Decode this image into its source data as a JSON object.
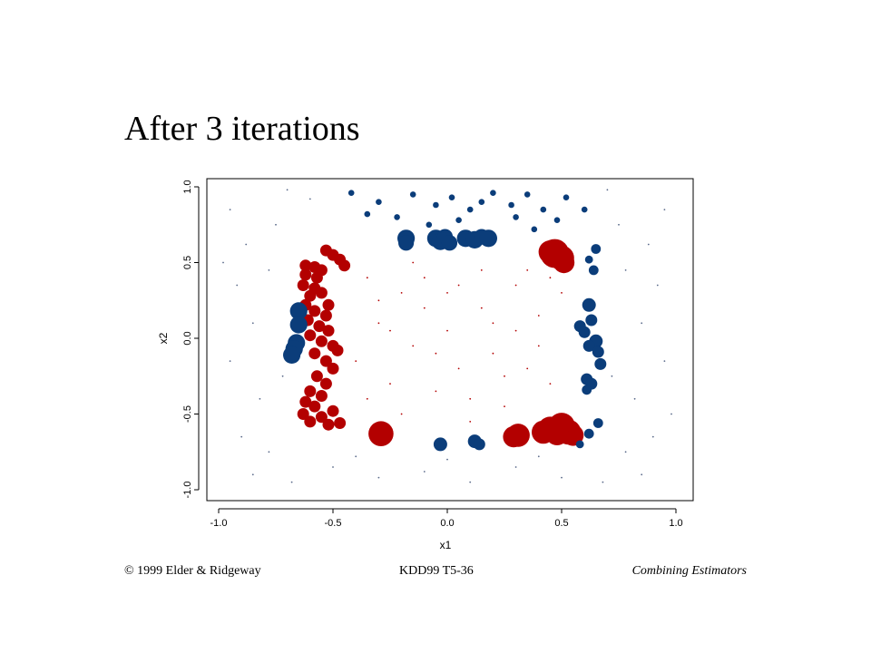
{
  "slide": {
    "title": "After 3 iterations"
  },
  "footer": {
    "left": "© 1999 Elder & Ridgeway",
    "center": "KDD99 T5-36",
    "right": "Combining Estimators"
  },
  "chart_data": {
    "type": "scatter",
    "xlabel": "x1",
    "ylabel": "x2",
    "xlim": [
      -1.0,
      1.0
    ],
    "ylim": [
      -1.0,
      1.0
    ],
    "xticks": [
      "-1.0",
      "-0.5",
      "0.0",
      "0.5",
      "1.0"
    ],
    "yticks": [
      "-1.0",
      "-0.5",
      "0.0",
      "0.5",
      "1.0"
    ],
    "grid": false,
    "series": [
      {
        "color": "#b30000",
        "points": [
          {
            "x": 0.47,
            "y": 0.56,
            "w": 14
          },
          {
            "x": 0.5,
            "y": 0.53,
            "w": 12
          },
          {
            "x": 0.45,
            "y": 0.57,
            "w": 11
          },
          {
            "x": 0.51,
            "y": 0.5,
            "w": 10
          },
          {
            "x": -0.29,
            "y": -0.63,
            "w": 12
          },
          {
            "x": 0.31,
            "y": -0.64,
            "w": 11
          },
          {
            "x": 0.29,
            "y": -0.65,
            "w": 10
          },
          {
            "x": 0.42,
            "y": -0.62,
            "w": 11
          },
          {
            "x": 0.45,
            "y": -0.6,
            "w": 12
          },
          {
            "x": 0.5,
            "y": -0.58,
            "w": 13
          },
          {
            "x": 0.53,
            "y": -0.62,
            "w": 12
          },
          {
            "x": 0.55,
            "y": -0.64,
            "w": 10
          },
          {
            "x": 0.48,
            "y": -0.63,
            "w": 11
          },
          {
            "x": -0.62,
            "y": 0.48,
            "w": 5
          },
          {
            "x": -0.58,
            "y": 0.47,
            "w": 5
          },
          {
            "x": -0.55,
            "y": 0.45,
            "w": 5
          },
          {
            "x": -0.62,
            "y": 0.42,
            "w": 5
          },
          {
            "x": -0.57,
            "y": 0.4,
            "w": 5
          },
          {
            "x": -0.63,
            "y": 0.35,
            "w": 5
          },
          {
            "x": -0.58,
            "y": 0.33,
            "w": 5
          },
          {
            "x": -0.55,
            "y": 0.3,
            "w": 5
          },
          {
            "x": -0.6,
            "y": 0.28,
            "w": 5
          },
          {
            "x": -0.62,
            "y": 0.22,
            "w": 5
          },
          {
            "x": -0.58,
            "y": 0.18,
            "w": 5
          },
          {
            "x": -0.53,
            "y": 0.15,
            "w": 5
          },
          {
            "x": -0.61,
            "y": 0.12,
            "w": 5
          },
          {
            "x": -0.56,
            "y": 0.08,
            "w": 5
          },
          {
            "x": -0.52,
            "y": 0.05,
            "w": 5
          },
          {
            "x": -0.6,
            "y": 0.02,
            "w": 5
          },
          {
            "x": -0.55,
            "y": -0.02,
            "w": 5
          },
          {
            "x": -0.5,
            "y": -0.05,
            "w": 5
          },
          {
            "x": -0.58,
            "y": -0.1,
            "w": 5
          },
          {
            "x": -0.53,
            "y": -0.15,
            "w": 5
          },
          {
            "x": -0.5,
            "y": -0.2,
            "w": 5
          },
          {
            "x": -0.57,
            "y": -0.25,
            "w": 5
          },
          {
            "x": -0.53,
            "y": -0.3,
            "w": 5
          },
          {
            "x": -0.6,
            "y": -0.35,
            "w": 5
          },
          {
            "x": -0.55,
            "y": -0.38,
            "w": 5
          },
          {
            "x": -0.62,
            "y": -0.42,
            "w": 5
          },
          {
            "x": -0.58,
            "y": -0.45,
            "w": 5
          },
          {
            "x": -0.55,
            "y": -0.52,
            "w": 5
          },
          {
            "x": -0.6,
            "y": -0.55,
            "w": 5
          },
          {
            "x": -0.52,
            "y": -0.57,
            "w": 5
          },
          {
            "x": -0.47,
            "y": -0.56,
            "w": 5
          },
          {
            "x": -0.5,
            "y": 0.55,
            "w": 5
          },
          {
            "x": -0.47,
            "y": 0.52,
            "w": 5
          },
          {
            "x": -0.53,
            "y": 0.58,
            "w": 5
          },
          {
            "x": -0.45,
            "y": 0.48,
            "w": 5
          },
          {
            "x": -0.52,
            "y": 0.22,
            "w": 5
          },
          {
            "x": -0.48,
            "y": -0.08,
            "w": 5
          },
          {
            "x": -0.5,
            "y": -0.48,
            "w": 5
          },
          {
            "x": -0.63,
            "y": -0.5,
            "w": 5
          },
          {
            "x": -0.2,
            "y": 0.3,
            "w": 1
          },
          {
            "x": -0.1,
            "y": 0.4,
            "w": 1
          },
          {
            "x": 0.05,
            "y": 0.35,
            "w": 1
          },
          {
            "x": 0.15,
            "y": 0.2,
            "w": 1
          },
          {
            "x": 0.3,
            "y": 0.35,
            "w": 1
          },
          {
            "x": 0.4,
            "y": 0.15,
            "w": 1
          },
          {
            "x": -0.3,
            "y": 0.1,
            "w": 1
          },
          {
            "x": -0.15,
            "y": -0.05,
            "w": 1
          },
          {
            "x": 0.0,
            "y": 0.05,
            "w": 1
          },
          {
            "x": 0.2,
            "y": -0.1,
            "w": 1
          },
          {
            "x": 0.35,
            "y": -0.2,
            "w": 1
          },
          {
            "x": -0.25,
            "y": -0.3,
            "w": 1
          },
          {
            "x": -0.05,
            "y": -0.35,
            "w": 1
          },
          {
            "x": 0.1,
            "y": -0.4,
            "w": 1
          },
          {
            "x": 0.25,
            "y": -0.45,
            "w": 1
          },
          {
            "x": 0.45,
            "y": -0.3,
            "w": 1
          },
          {
            "x": -0.35,
            "y": 0.4,
            "w": 1
          },
          {
            "x": 0.5,
            "y": 0.3,
            "w": 1
          },
          {
            "x": -0.4,
            "y": -0.15,
            "w": 1
          },
          {
            "x": 0.3,
            "y": 0.05,
            "w": 1
          },
          {
            "x": -0.1,
            "y": 0.2,
            "w": 1
          },
          {
            "x": 0.05,
            "y": -0.2,
            "w": 1
          },
          {
            "x": -0.2,
            "y": -0.5,
            "w": 1
          },
          {
            "x": 0.15,
            "y": 0.45,
            "w": 1
          },
          {
            "x": 0.4,
            "y": -0.05,
            "w": 1
          },
          {
            "x": -0.3,
            "y": 0.25,
            "w": 1
          },
          {
            "x": 0.2,
            "y": 0.1,
            "w": 1
          },
          {
            "x": -0.05,
            "y": -0.1,
            "w": 1
          },
          {
            "x": 0.35,
            "y": 0.45,
            "w": 1
          },
          {
            "x": -0.15,
            "y": 0.5,
            "w": 1
          },
          {
            "x": 0.1,
            "y": -0.55,
            "w": 1
          },
          {
            "x": -0.35,
            "y": -0.4,
            "w": 1
          },
          {
            "x": 0.45,
            "y": 0.4,
            "w": 1
          },
          {
            "x": 0.25,
            "y": -0.25,
            "w": 1
          },
          {
            "x": -0.25,
            "y": 0.05,
            "w": 1
          },
          {
            "x": 0.0,
            "y": 0.3,
            "w": 1
          }
        ]
      },
      {
        "color": "#0b3d7a",
        "points": [
          {
            "x": -0.65,
            "y": 0.18,
            "w": 8
          },
          {
            "x": -0.65,
            "y": 0.09,
            "w": 8
          },
          {
            "x": -0.66,
            "y": -0.03,
            "w": 8
          },
          {
            "x": -0.67,
            "y": -0.07,
            "w": 8
          },
          {
            "x": -0.68,
            "y": -0.11,
            "w": 8
          },
          {
            "x": -0.18,
            "y": 0.66,
            "w": 8
          },
          {
            "x": -0.18,
            "y": 0.63,
            "w": 7
          },
          {
            "x": -0.05,
            "y": 0.66,
            "w": 8
          },
          {
            "x": -0.03,
            "y": 0.64,
            "w": 8
          },
          {
            "x": -0.01,
            "y": 0.67,
            "w": 7
          },
          {
            "x": 0.01,
            "y": 0.63,
            "w": 7
          },
          {
            "x": 0.08,
            "y": 0.66,
            "w": 8
          },
          {
            "x": 0.12,
            "y": 0.65,
            "w": 8
          },
          {
            "x": 0.15,
            "y": 0.67,
            "w": 7
          },
          {
            "x": 0.18,
            "y": 0.66,
            "w": 8
          },
          {
            "x": -0.03,
            "y": -0.7,
            "w": 6
          },
          {
            "x": 0.12,
            "y": -0.68,
            "w": 6
          },
          {
            "x": 0.14,
            "y": -0.7,
            "w": 5
          },
          {
            "x": 0.58,
            "y": 0.08,
            "w": 5
          },
          {
            "x": 0.62,
            "y": 0.22,
            "w": 6
          },
          {
            "x": 0.63,
            "y": 0.12,
            "w": 5
          },
          {
            "x": 0.6,
            "y": 0.04,
            "w": 5
          },
          {
            "x": 0.65,
            "y": -0.02,
            "w": 6
          },
          {
            "x": 0.62,
            "y": -0.05,
            "w": 5
          },
          {
            "x": 0.66,
            "y": -0.09,
            "w": 5
          },
          {
            "x": 0.67,
            "y": -0.17,
            "w": 5
          },
          {
            "x": 0.61,
            "y": -0.27,
            "w": 5
          },
          {
            "x": 0.63,
            "y": -0.3,
            "w": 5
          },
          {
            "x": 0.61,
            "y": -0.34,
            "w": 4
          },
          {
            "x": 0.64,
            "y": 0.45,
            "w": 4
          },
          {
            "x": 0.65,
            "y": 0.59,
            "w": 4
          },
          {
            "x": 0.62,
            "y": 0.52,
            "w": 3
          },
          {
            "x": 0.66,
            "y": -0.56,
            "w": 4
          },
          {
            "x": 0.62,
            "y": -0.63,
            "w": 4
          },
          {
            "x": 0.58,
            "y": -0.7,
            "w": 3
          },
          {
            "x": -0.42,
            "y": 0.96,
            "w": 2
          },
          {
            "x": -0.3,
            "y": 0.9,
            "w": 2
          },
          {
            "x": -0.15,
            "y": 0.95,
            "w": 2
          },
          {
            "x": -0.05,
            "y": 0.88,
            "w": 2
          },
          {
            "x": 0.02,
            "y": 0.93,
            "w": 2
          },
          {
            "x": 0.1,
            "y": 0.85,
            "w": 2
          },
          {
            "x": 0.2,
            "y": 0.96,
            "w": 2
          },
          {
            "x": 0.28,
            "y": 0.88,
            "w": 2
          },
          {
            "x": 0.35,
            "y": 0.95,
            "w": 2
          },
          {
            "x": 0.42,
            "y": 0.85,
            "w": 2
          },
          {
            "x": 0.52,
            "y": 0.93,
            "w": 2
          },
          {
            "x": 0.6,
            "y": 0.85,
            "w": 2
          },
          {
            "x": -0.22,
            "y": 0.8,
            "w": 2
          },
          {
            "x": 0.05,
            "y": 0.78,
            "w": 2
          },
          {
            "x": 0.3,
            "y": 0.8,
            "w": 2
          },
          {
            "x": 0.48,
            "y": 0.78,
            "w": 2
          },
          {
            "x": -0.35,
            "y": 0.82,
            "w": 2
          },
          {
            "x": 0.15,
            "y": 0.9,
            "w": 2
          },
          {
            "x": -0.08,
            "y": 0.75,
            "w": 2
          },
          {
            "x": 0.38,
            "y": 0.72,
            "w": 2
          }
        ]
      },
      {
        "color": "#5a6a8a",
        "points": [
          {
            "x": -0.95,
            "y": 0.85,
            "w": 1
          },
          {
            "x": -0.88,
            "y": 0.62,
            "w": 1
          },
          {
            "x": -0.92,
            "y": 0.35,
            "w": 1
          },
          {
            "x": -0.85,
            "y": 0.1,
            "w": 1
          },
          {
            "x": -0.95,
            "y": -0.15,
            "w": 1
          },
          {
            "x": -0.82,
            "y": -0.4,
            "w": 1
          },
          {
            "x": -0.9,
            "y": -0.65,
            "w": 1
          },
          {
            "x": -0.85,
            "y": -0.9,
            "w": 1
          },
          {
            "x": -0.75,
            "y": 0.75,
            "w": 1
          },
          {
            "x": -0.78,
            "y": 0.45,
            "w": 1
          },
          {
            "x": -0.72,
            "y": -0.25,
            "w": 1
          },
          {
            "x": -0.78,
            "y": -0.75,
            "w": 1
          },
          {
            "x": 0.95,
            "y": 0.85,
            "w": 1
          },
          {
            "x": 0.88,
            "y": 0.62,
            "w": 1
          },
          {
            "x": 0.92,
            "y": 0.35,
            "w": 1
          },
          {
            "x": 0.85,
            "y": 0.1,
            "w": 1
          },
          {
            "x": 0.95,
            "y": -0.15,
            "w": 1
          },
          {
            "x": 0.82,
            "y": -0.4,
            "w": 1
          },
          {
            "x": 0.9,
            "y": -0.65,
            "w": 1
          },
          {
            "x": 0.85,
            "y": -0.9,
            "w": 1
          },
          {
            "x": 0.75,
            "y": 0.75,
            "w": 1
          },
          {
            "x": 0.78,
            "y": 0.45,
            "w": 1
          },
          {
            "x": 0.72,
            "y": -0.25,
            "w": 1
          },
          {
            "x": 0.78,
            "y": -0.75,
            "w": 1
          },
          {
            "x": -0.5,
            "y": -0.85,
            "w": 1
          },
          {
            "x": -0.3,
            "y": -0.92,
            "w": 1
          },
          {
            "x": -0.1,
            "y": -0.88,
            "w": 1
          },
          {
            "x": 0.1,
            "y": -0.95,
            "w": 1
          },
          {
            "x": 0.3,
            "y": -0.85,
            "w": 1
          },
          {
            "x": 0.5,
            "y": -0.92,
            "w": 1
          },
          {
            "x": -0.4,
            "y": -0.78,
            "w": 1
          },
          {
            "x": 0.0,
            "y": -0.8,
            "w": 1
          },
          {
            "x": 0.4,
            "y": -0.78,
            "w": 1
          },
          {
            "x": -0.6,
            "y": 0.92,
            "w": 1
          },
          {
            "x": -0.7,
            "y": 0.98,
            "w": 1
          },
          {
            "x": 0.7,
            "y": 0.98,
            "w": 1
          },
          {
            "x": -0.98,
            "y": 0.5,
            "w": 1
          },
          {
            "x": 0.98,
            "y": -0.5,
            "w": 1
          },
          {
            "x": -0.68,
            "y": -0.95,
            "w": 1
          },
          {
            "x": 0.68,
            "y": -0.95,
            "w": 1
          }
        ]
      }
    ]
  }
}
